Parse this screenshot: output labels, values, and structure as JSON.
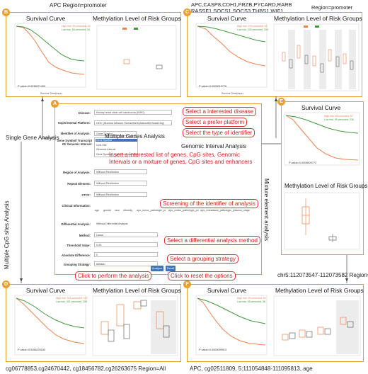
{
  "captions": {
    "b": "APC  Region=promoter",
    "c_line1": "APC,CASP8,CDH1,FRZB,PYCARD,RARB",
    "c_line2": "RASSF1,SOCS1,SOCS3,THBS1,WIF1",
    "c_region": "Region=promoter",
    "e": "chr5:112073547-112073582   Region=All",
    "d": "cg06778853,cg24670442, cg18456782,cg26263675   Region=All",
    "f": "APC, cg02511809, 5:111054848-111095813, age"
  },
  "panels": {
    "a_letter": "A",
    "b_letter": "B",
    "c_letter": "C",
    "d_letter": "D",
    "e_letter": "E",
    "f_letter": "F"
  },
  "plot_titles": {
    "survival": "Survival Curve",
    "methylation": "Methylation Level of Risk Groups",
    "methylation_e": "Methylation Level of  Risk Groups"
  },
  "legends": {
    "b_high": "High risk: 55,censored: 32",
    "b_low": "Low risk: 56,censored: 34",
    "c_high": "High risk: 239,censored: 62",
    "c_low": "Low risk: 239,censored: 204",
    "d_high": "High risk: 301,censored: 230",
    "d_low": "Low risk: 301,censored: 208",
    "e_high": "High risk: 95,censored: 57",
    "e_low": "Low risk: 95,censored: 236",
    "f_high": "High risk: 95,censored: 52",
    "f_low": "Low risk: 95,censored: 38"
  },
  "pvalues": {
    "b": "P value=0.0236571493",
    "c": "P value=0.0000019776",
    "d": "P value=0.0456225033",
    "e": "P value=0.0008500772",
    "f": "P value=0.0000099913"
  },
  "axis": {
    "survival_x": "Survival Time(days)",
    "survival_y": "Survival Probability",
    "methylation_y": "Methylation Level"
  },
  "form": {
    "disease_label": "Disease:",
    "disease_value": "Kidney renal clear cell carcinoma (KIRC)",
    "platform_label": "Experimental Platform:",
    "platform_value": "GDC (Illumina Infinium HumanMethylation450 BeadChip)",
    "identifier_label": "Identifier of Analysis:",
    "identifier_value": "Gene Symbol",
    "identifier_options": [
      "Gene Symbol",
      "CpG Site",
      "Genomic Interval",
      "Gene Symbol + CpG Site + Interval"
    ],
    "gene_label": "Gene Symbol/ Transcript ID/ Genomic Interval:",
    "region_label": "Region of Analysis:",
    "region_value": "Without Restriction",
    "repeat_label": "Repeat Element:",
    "repeat_value": "Without Restriction",
    "ctcf_label": "CTCF:",
    "ctcf_value": "Without Restriction",
    "clinical_label": "Clinical Information:",
    "clinical_options": [
      "age",
      "gender",
      "race",
      "ethnicity",
      "ajcc_tumor_pathologic_pt",
      "ajcc_nodes_pathologic_pn",
      "ajcc_metastasis_pathologic_pm",
      "tumor_stage"
    ],
    "differential_label": "Differential Analysis:",
    "differential_value": "Without Differential Analysis",
    "method_label": "Method:",
    "method_value": "Lasso",
    "threshold_label": "Threshold Value:",
    "threshold_value": "0.05",
    "absdiff_label": "Absolute Difference:",
    "absdiff_value": "0",
    "grouping_label": "Grouping Strategy:",
    "grouping_value": "Median",
    "analyze_button": "Analyze",
    "reset_button": "Reset"
  },
  "callouts": {
    "disease": "Select a interested disease",
    "platform": "Select a prefer platform",
    "identifier": "Select the type of identifier",
    "insert": "Insert a interested list of genes, CpG sites, Genomic Intervals or a mixture of genes, CpG sites and enhancers",
    "screening": "Screening of the identifier of analysis",
    "method": "Select a differential analysis method",
    "grouping": "Select a grouping strategy",
    "perform": "Click to perform the analysis",
    "reset": "Click to reset the options"
  },
  "arrow_labels": {
    "single_gene": "Single Gene Analysis",
    "multiple_genes": "Multiple Genes Analysis",
    "genomic_interval": "Genomic Interval Analysis",
    "multiple_cpg": "Multiple CpG sites Analysis",
    "mixture": "Mixture element analysis"
  },
  "colors": {
    "panel_border": "#e8a033",
    "high_risk": "#f07f4c",
    "low_risk": "#3f9a3c",
    "callout": "#d42020",
    "button": "#3f74b8"
  },
  "chart_data": [
    {
      "panel": "B",
      "type": "line",
      "title": "Survival Curve",
      "series": [
        {
          "name": "High risk",
          "x": [
            0,
            0.2,
            0.4,
            0.6,
            0.8,
            1.0
          ],
          "y": [
            1.0,
            0.7,
            0.5,
            0.3,
            0.22,
            0.2
          ]
        },
        {
          "name": "Low risk",
          "x": [
            0,
            0.2,
            0.4,
            0.6,
            0.8,
            1.0
          ],
          "y": [
            1.0,
            0.88,
            0.72,
            0.55,
            0.45,
            0.4
          ]
        }
      ]
    },
    {
      "panel": "B",
      "type": "box",
      "title": "Methylation Level of Risk Groups",
      "categories": [
        "High",
        "Low"
      ],
      "medians": [
        0.55,
        0.35
      ]
    }
  ]
}
